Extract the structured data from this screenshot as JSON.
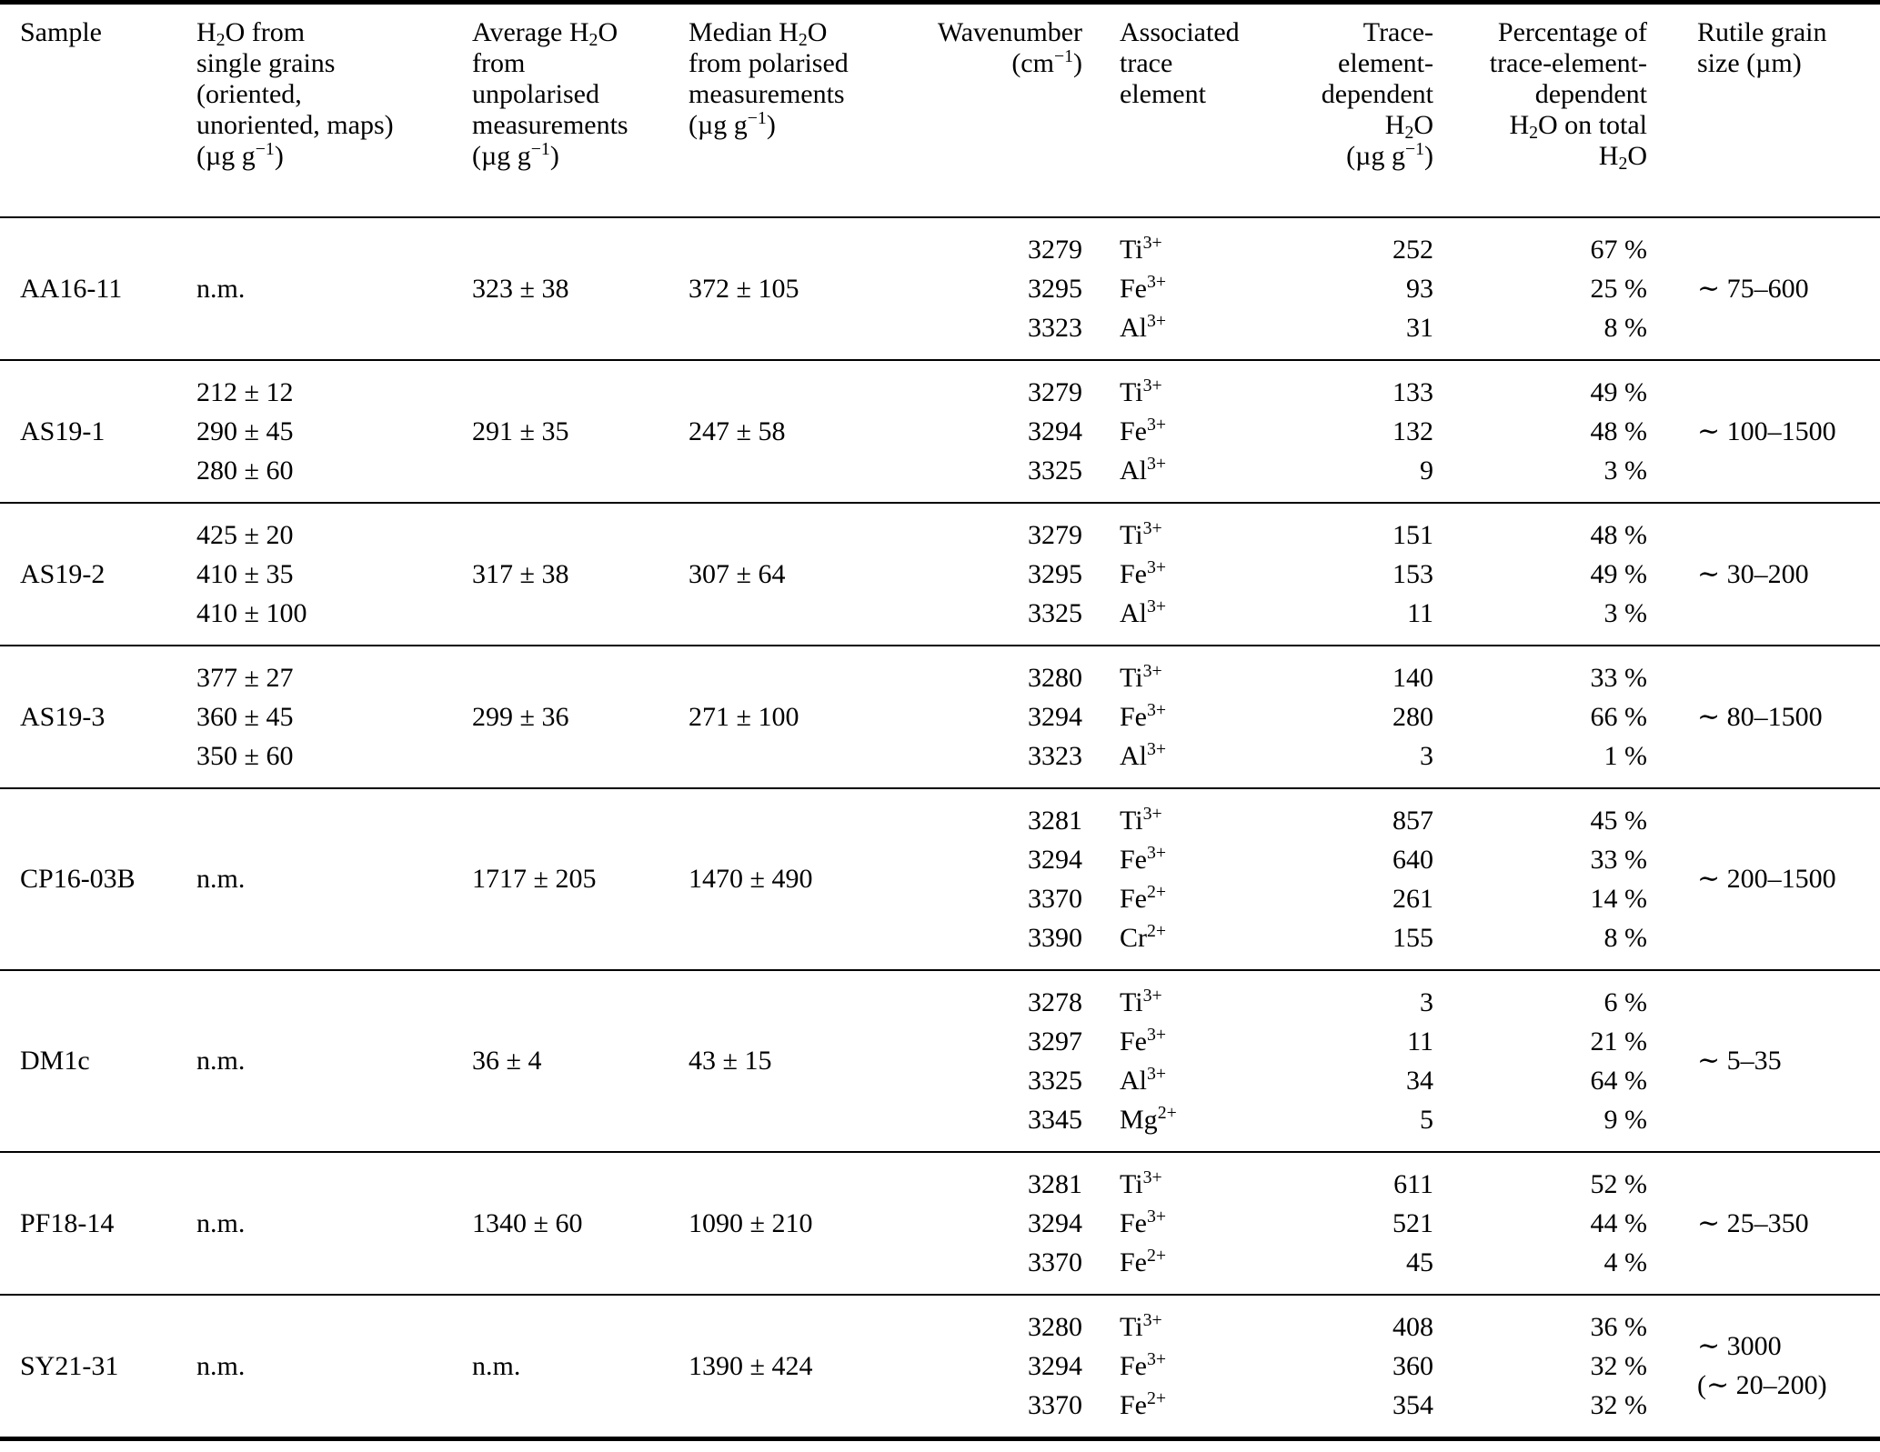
{
  "table": {
    "headers": [
      {
        "id": "sample",
        "align": "left",
        "lines": [
          "Sample"
        ]
      },
      {
        "id": "single-grains",
        "align": "left",
        "lines": [
          "H2O from",
          "single grains",
          "(oriented,",
          "unoriented, maps)",
          "(µg g−1)"
        ]
      },
      {
        "id": "average-unpolarised",
        "align": "left",
        "lines": [
          "Average H2O",
          "from",
          "unpolarised",
          "measurements",
          "(µg g−1)"
        ]
      },
      {
        "id": "median-polarised",
        "align": "left",
        "lines": [
          "Median H2O",
          "from polarised",
          "measurements",
          "(µg g−1)"
        ]
      },
      {
        "id": "wavenumber",
        "align": "right",
        "lines": [
          "Wavenumber",
          "(cm−1)"
        ]
      },
      {
        "id": "trace-element",
        "align": "left",
        "lines": [
          "Associated",
          "trace",
          "element"
        ]
      },
      {
        "id": "trace-h2o",
        "align": "right",
        "lines": [
          "Trace-",
          "element-",
          "dependent",
          "H2O",
          "(µg g−1)"
        ]
      },
      {
        "id": "percent-total",
        "align": "right",
        "lines": [
          "Percentage of",
          "trace-element-",
          "dependent",
          "H2O on total",
          "H2O"
        ]
      },
      {
        "id": "grain-size",
        "align": "left",
        "lines": [
          "Rutile grain",
          "size (µm)"
        ]
      }
    ],
    "rows": [
      {
        "sample": "AA16-11",
        "single_grains": [
          "n.m."
        ],
        "average": "323 ± 38",
        "median": "372 ± 105",
        "peaks": [
          {
            "wavenumber": "3279",
            "element": "Ti3+",
            "h2o": "252",
            "percent": "67 %"
          },
          {
            "wavenumber": "3295",
            "element": "Fe3+",
            "h2o": "93",
            "percent": "25 %"
          },
          {
            "wavenumber": "3323",
            "element": "Al3+",
            "h2o": "31",
            "percent": "8 %"
          }
        ],
        "grain_size": [
          "∼ 75–600"
        ]
      },
      {
        "sample": "AS19-1",
        "single_grains": [
          "212 ± 12",
          "290 ± 45",
          "280 ± 60"
        ],
        "average": "291 ± 35",
        "median": "247 ± 58",
        "peaks": [
          {
            "wavenumber": "3279",
            "element": "Ti3+",
            "h2o": "133",
            "percent": "49 %"
          },
          {
            "wavenumber": "3294",
            "element": "Fe3+",
            "h2o": "132",
            "percent": "48 %"
          },
          {
            "wavenumber": "3325",
            "element": "Al3+",
            "h2o": "9",
            "percent": "3 %"
          }
        ],
        "grain_size": [
          "∼ 100–1500"
        ]
      },
      {
        "sample": "AS19-2",
        "single_grains": [
          "425 ± 20",
          "410 ± 35",
          "410 ± 100"
        ],
        "average": "317 ± 38",
        "median": "307 ± 64",
        "peaks": [
          {
            "wavenumber": "3279",
            "element": "Ti3+",
            "h2o": "151",
            "percent": "48 %"
          },
          {
            "wavenumber": "3295",
            "element": "Fe3+",
            "h2o": "153",
            "percent": "49 %"
          },
          {
            "wavenumber": "3325",
            "element": "Al3+",
            "h2o": "11",
            "percent": "3 %"
          }
        ],
        "grain_size": [
          "∼ 30–200"
        ]
      },
      {
        "sample": "AS19-3",
        "single_grains": [
          "377 ± 27",
          "360 ± 45",
          "350 ± 60"
        ],
        "average": "299 ± 36",
        "median": "271 ± 100",
        "peaks": [
          {
            "wavenumber": "3280",
            "element": "Ti3+",
            "h2o": "140",
            "percent": "33 %"
          },
          {
            "wavenumber": "3294",
            "element": "Fe3+",
            "h2o": "280",
            "percent": "66 %"
          },
          {
            "wavenumber": "3323",
            "element": "Al3+",
            "h2o": "3",
            "percent": "1 %"
          }
        ],
        "grain_size": [
          "∼ 80–1500"
        ]
      },
      {
        "sample": "CP16-03B",
        "single_grains": [
          "n.m."
        ],
        "average": "1717 ± 205",
        "median": "1470 ± 490",
        "peaks": [
          {
            "wavenumber": "3281",
            "element": "Ti3+",
            "h2o": "857",
            "percent": "45 %"
          },
          {
            "wavenumber": "3294",
            "element": "Fe3+",
            "h2o": "640",
            "percent": "33 %"
          },
          {
            "wavenumber": "3370",
            "element": "Fe2+",
            "h2o": "261",
            "percent": "14 %"
          },
          {
            "wavenumber": "3390",
            "element": "Cr2+",
            "h2o": "155",
            "percent": "8 %"
          }
        ],
        "grain_size": [
          "∼ 200–1500"
        ]
      },
      {
        "sample": "DM1c",
        "single_grains": [
          "n.m."
        ],
        "average": "36 ± 4",
        "median": "43 ± 15",
        "peaks": [
          {
            "wavenumber": "3278",
            "element": "Ti3+",
            "h2o": "3",
            "percent": "6 %"
          },
          {
            "wavenumber": "3297",
            "element": "Fe3+",
            "h2o": "11",
            "percent": "21 %"
          },
          {
            "wavenumber": "3325",
            "element": "Al3+",
            "h2o": "34",
            "percent": "64 %"
          },
          {
            "wavenumber": "3345",
            "element": "Mg2+",
            "h2o": "5",
            "percent": "9 %"
          }
        ],
        "grain_size": [
          "∼ 5–35"
        ]
      },
      {
        "sample": "PF18-14",
        "single_grains": [
          "n.m."
        ],
        "average": "1340 ± 60",
        "median": "1090 ± 210",
        "peaks": [
          {
            "wavenumber": "3281",
            "element": "Ti3+",
            "h2o": "611",
            "percent": "52 %"
          },
          {
            "wavenumber": "3294",
            "element": "Fe3+",
            "h2o": "521",
            "percent": "44 %"
          },
          {
            "wavenumber": "3370",
            "element": "Fe2+",
            "h2o": "45",
            "percent": "4 %"
          }
        ],
        "grain_size": [
          "∼ 25–350"
        ]
      },
      {
        "sample": "SY21-31",
        "single_grains": [
          "n.m."
        ],
        "average": "n.m.",
        "median": "1390 ± 424",
        "peaks": [
          {
            "wavenumber": "3280",
            "element": "Ti3+",
            "h2o": "408",
            "percent": "36 %"
          },
          {
            "wavenumber": "3294",
            "element": "Fe3+",
            "h2o": "360",
            "percent": "32 %"
          },
          {
            "wavenumber": "3370",
            "element": "Fe2+",
            "h2o": "354",
            "percent": "32 %"
          }
        ],
        "grain_size": [
          "∼ 3000",
          "(∼ 20–200)"
        ]
      }
    ]
  }
}
